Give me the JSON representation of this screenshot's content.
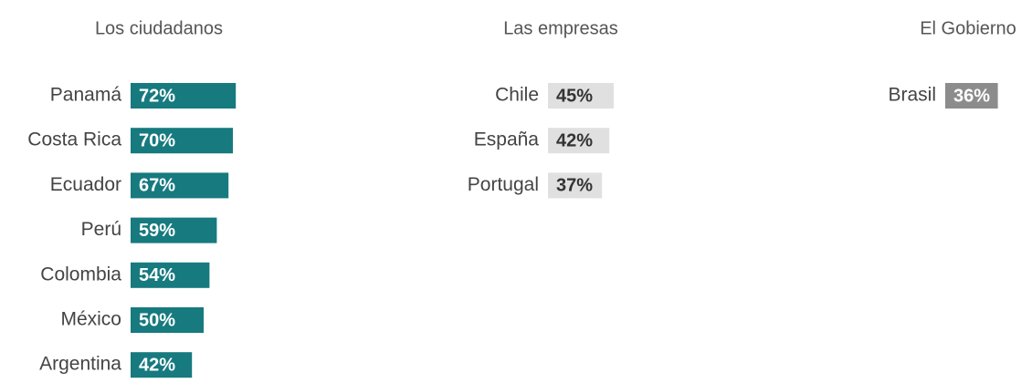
{
  "chart_data": [
    {
      "type": "bar",
      "title": "Los ciudadanos",
      "color": "#167a7f",
      "categories": [
        "Panamá",
        "Costa Rica",
        "Ecuador",
        "Perú",
        "Colombia",
        "México",
        "Argentina"
      ],
      "values": [
        72,
        70,
        67,
        59,
        54,
        50,
        42
      ],
      "value_labels": [
        "72%",
        "70%",
        "67%",
        "59%",
        "54%",
        "50%",
        "42%"
      ]
    },
    {
      "type": "bar",
      "title": "Las empresas",
      "color": "#e0e0e0",
      "categories": [
        "Chile",
        "España",
        "Portugal"
      ],
      "values": [
        45,
        42,
        37
      ],
      "value_labels": [
        "45%",
        "42%",
        "37%"
      ]
    },
    {
      "type": "bar",
      "title": "El Gobierno",
      "color": "#8c8c8c",
      "categories": [
        "Brasil"
      ],
      "values": [
        36
      ],
      "value_labels": [
        "36%"
      ]
    }
  ]
}
